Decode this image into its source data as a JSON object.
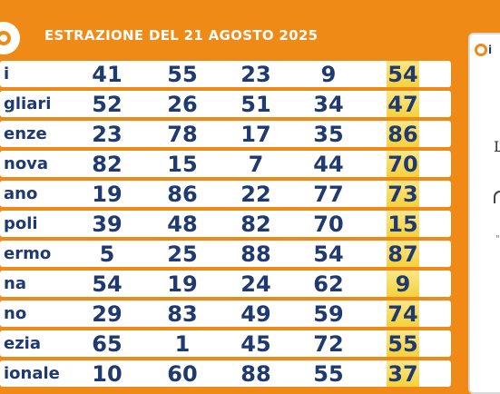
{
  "header": {
    "title": "ESTRAZIONE DEL 21 AGOSTO 2025",
    "logo_icon": "lotto-logo-icon"
  },
  "colors": {
    "background": "#f08a17",
    "text": "#1e3a70",
    "row": "#ffffff",
    "extra_highlight": "#f5d13c"
  },
  "rows": [
    {
      "city": "i",
      "numbers": [
        "41",
        "55",
        "23",
        "9"
      ],
      "extra": "54"
    },
    {
      "city": "gliari",
      "numbers": [
        "52",
        "26",
        "51",
        "34"
      ],
      "extra": "47"
    },
    {
      "city": "enze",
      "numbers": [
        "23",
        "78",
        "17",
        "35"
      ],
      "extra": "86"
    },
    {
      "city": "nova",
      "numbers": [
        "82",
        "15",
        "7",
        "44"
      ],
      "extra": "70"
    },
    {
      "city": "ano",
      "numbers": [
        "19",
        "86",
        "22",
        "77"
      ],
      "extra": "73"
    },
    {
      "city": "poli",
      "numbers": [
        "39",
        "48",
        "82",
        "70"
      ],
      "extra": "15"
    },
    {
      "city": "ermo",
      "numbers": [
        "5",
        "25",
        "88",
        "54"
      ],
      "extra": "87"
    },
    {
      "city": "na",
      "numbers": [
        "54",
        "19",
        "24",
        "62"
      ],
      "extra": "9"
    },
    {
      "city": "no",
      "numbers": [
        "29",
        "83",
        "49",
        "59"
      ],
      "extra": "74"
    },
    {
      "city": "ezia",
      "numbers": [
        "65",
        "1",
        "45",
        "72"
      ],
      "extra": "55"
    },
    {
      "city": "ionale",
      "numbers": [
        "10",
        "60",
        "88",
        "55"
      ],
      "extra": "37"
    }
  ],
  "side_panel": {
    "logo_text": "i",
    "mark1": "L",
    "mark3": "\""
  }
}
